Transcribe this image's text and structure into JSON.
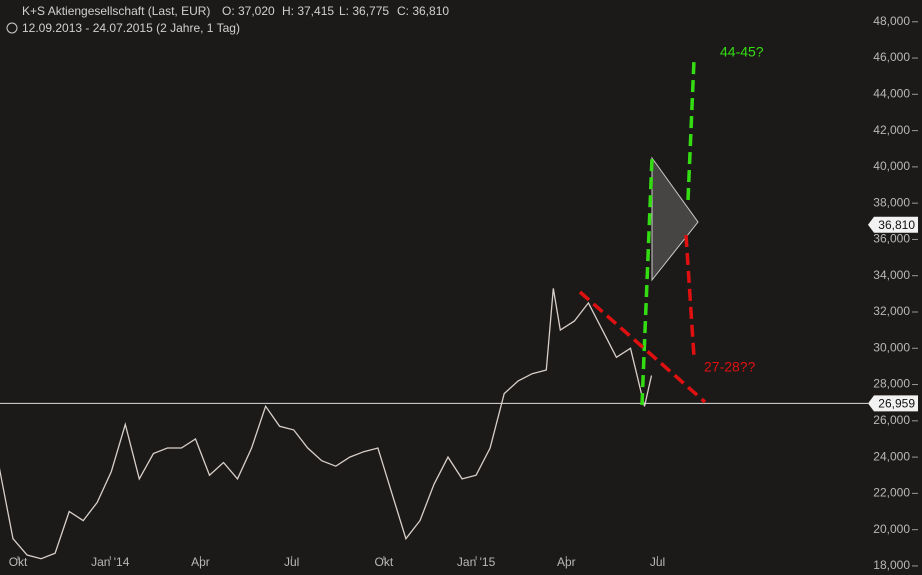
{
  "chart_data": {
    "type": "line",
    "title": "K+S Aktiengesellschaft (Last, EUR)",
    "ohlc": [
      "O: 37,020",
      "H: 37,415",
      "L: 36,775",
      "C: 36,810"
    ],
    "subtitle": "12.09.2013 - 24.07.2015 (2 Jahre, 1 Tag)",
    "x": [
      "2013-09-12",
      "2013-09-26",
      "2013-10-10",
      "2013-10-24",
      "2013-11-07",
      "2013-11-21",
      "2013-12-05",
      "2013-12-19",
      "2014-01-02",
      "2014-01-16",
      "2014-01-30",
      "2014-02-13",
      "2014-02-27",
      "2014-03-13",
      "2014-03-27",
      "2014-04-10",
      "2014-04-24",
      "2014-05-08",
      "2014-05-22",
      "2014-06-05",
      "2014-06-19",
      "2014-07-03",
      "2014-07-17",
      "2014-07-31",
      "2014-08-14",
      "2014-08-28",
      "2014-09-11",
      "2014-09-25",
      "2014-10-09",
      "2014-10-23",
      "2014-11-06",
      "2014-11-20",
      "2014-12-04",
      "2014-12-18",
      "2015-01-01",
      "2015-01-15",
      "2015-01-29",
      "2015-02-12",
      "2015-02-26",
      "2015-03-12",
      "2015-03-19",
      "2015-03-26",
      "2015-04-09",
      "2015-04-23",
      "2015-05-07",
      "2015-05-21",
      "2015-06-04",
      "2015-06-18",
      "2015-06-25"
    ],
    "series": [
      {
        "name": "K+S Aktiengesellschaft",
        "color": "#d8cfc8",
        "values": [
          23500,
          19500,
          18600,
          18400,
          18700,
          21000,
          20500,
          21500,
          23200,
          25800,
          22800,
          24200,
          24500,
          24500,
          25000,
          23000,
          23700,
          22800,
          24500,
          26800,
          25700,
          25500,
          24500,
          23800,
          23500,
          24000,
          24300,
          24500,
          22000,
          19500,
          20500,
          22500,
          24000,
          22800,
          23000,
          24500,
          27500,
          28200,
          28600,
          28800,
          33300,
          31000,
          31500,
          32500,
          31000,
          29500,
          30000,
          26800,
          28500
        ]
      }
    ],
    "xlim": [
      "2013-09-13",
      "2016-01-24"
    ],
    "xticks": [
      {
        "value": "2013-10-01",
        "label": "Okt"
      },
      {
        "value": "2014-01-01",
        "label": "Jan '14"
      },
      {
        "value": "2014-04-01",
        "label": "Apr"
      },
      {
        "value": "2014-07-01",
        "label": "Jul"
      },
      {
        "value": "2014-10-01",
        "label": "Okt"
      },
      {
        "value": "2015-01-01",
        "label": "Jan '15"
      },
      {
        "value": "2015-04-01",
        "label": "Apr"
      },
      {
        "value": "2015-07-01",
        "label": "Jul"
      }
    ],
    "ylim": [
      17500,
      49200
    ],
    "yticks": [
      {
        "value": 18000,
        "label": "18,000"
      },
      {
        "value": 20000,
        "label": "20,000"
      },
      {
        "value": 22000,
        "label": "22,000"
      },
      {
        "value": 24000,
        "label": "24,000"
      },
      {
        "value": 26000,
        "label": "26,000"
      },
      {
        "value": 28000,
        "label": "28,000"
      },
      {
        "value": 30000,
        "label": "30,000"
      },
      {
        "value": 32000,
        "label": "32,000"
      },
      {
        "value": 34000,
        "label": "34,000"
      },
      {
        "value": 36000,
        "label": "36,000"
      },
      {
        "value": 38000,
        "label": "38,000"
      },
      {
        "value": 40000,
        "label": "40,000"
      },
      {
        "value": 42000,
        "label": "42,000"
      },
      {
        "value": 44000,
        "label": "44,000"
      },
      {
        "value": 46000,
        "label": "46,000"
      },
      {
        "value": 48000,
        "label": "48,000"
      }
    ],
    "price_tags": [
      {
        "value": 36810,
        "label": "36,810"
      },
      {
        "value": 26959,
        "label": "26,959"
      }
    ],
    "annotations": [
      "44-45?",
      "27-28??"
    ]
  }
}
